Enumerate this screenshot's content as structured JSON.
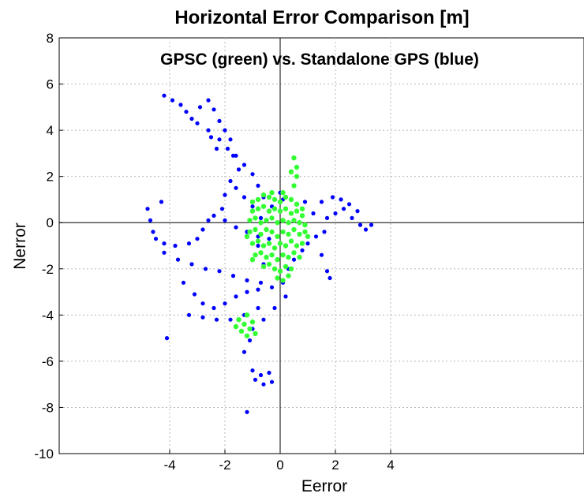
{
  "chart_data": {
    "type": "scatter",
    "title": "Horizontal Error Comparison [m]",
    "annotation": "GPSC (green) vs. Standalone GPS (blue)",
    "xlabel": "Eerror",
    "ylabel": "Nerror",
    "xlim": [
      -8,
      11
    ],
    "ylim": [
      -10,
      8
    ],
    "xticks": [
      -4,
      -2,
      0,
      2,
      4
    ],
    "yticks": [
      8,
      6,
      4,
      2,
      0,
      -2,
      -4,
      -6,
      -8,
      -10
    ],
    "grid": true,
    "series": [
      {
        "color": "#0000ff",
        "points": [
          [
            -4.2,
            5.5
          ],
          [
            -3.9,
            5.3
          ],
          [
            -3.6,
            5.1
          ],
          [
            -3.4,
            4.8
          ],
          [
            -3.2,
            4.5
          ],
          [
            -3.0,
            4.3
          ],
          [
            -2.6,
            4.0
          ],
          [
            -2.2,
            3.6
          ],
          [
            -1.9,
            3.2
          ],
          [
            -1.6,
            2.9
          ],
          [
            -1.3,
            2.5
          ],
          [
            -1.0,
            2.1
          ],
          [
            -0.8,
            1.6
          ],
          [
            -0.6,
            1.1
          ],
          [
            -2.6,
            5.3
          ],
          [
            -2.4,
            4.9
          ],
          [
            -2.2,
            4.4
          ],
          [
            -2.0,
            4.0
          ],
          [
            -1.8,
            3.6
          ],
          [
            -1.7,
            2.9
          ],
          [
            -1.5,
            2.3
          ],
          [
            -1.8,
            1.8
          ],
          [
            -2.0,
            1.2
          ],
          [
            -2.1,
            0.6
          ],
          [
            -1.6,
            1.5
          ],
          [
            -1.3,
            1.1
          ],
          [
            -1.0,
            0.7
          ],
          [
            -4.8,
            0.6
          ],
          [
            -4.7,
            0.1
          ],
          [
            -4.6,
            -0.4
          ],
          [
            -4.5,
            -0.7
          ],
          [
            -4.2,
            -0.9
          ],
          [
            -3.8,
            -1.0
          ],
          [
            -3.3,
            -0.9
          ],
          [
            -3.0,
            -0.7
          ],
          [
            -2.8,
            -0.3
          ],
          [
            -2.6,
            0.1
          ],
          [
            -2.4,
            0.3
          ],
          [
            -2.0,
            0.1
          ],
          [
            -1.6,
            -0.2
          ],
          [
            -1.2,
            -0.4
          ],
          [
            -0.8,
            -0.6
          ],
          [
            -0.4,
            -0.7
          ],
          [
            -4.2,
            -1.3
          ],
          [
            -3.7,
            -1.6
          ],
          [
            -3.2,
            -1.8
          ],
          [
            -2.7,
            -2.0
          ],
          [
            -2.2,
            -2.1
          ],
          [
            -1.7,
            -2.3
          ],
          [
            -1.2,
            -2.5
          ],
          [
            -0.7,
            -2.6
          ],
          [
            -0.3,
            -2.8
          ],
          [
            -3.5,
            -2.6
          ],
          [
            -3.1,
            -3.1
          ],
          [
            -2.8,
            -3.5
          ],
          [
            -2.4,
            -3.7
          ],
          [
            -2.0,
            -3.5
          ],
          [
            -1.6,
            -3.2
          ],
          [
            -1.2,
            -3.0
          ],
          [
            -0.8,
            -2.9
          ],
          [
            -3.3,
            -4.0
          ],
          [
            -2.8,
            -4.1
          ],
          [
            -2.3,
            -4.2
          ],
          [
            -1.8,
            -4.2
          ],
          [
            -1.3,
            -4.0
          ],
          [
            -0.8,
            -3.7
          ],
          [
            -1.0,
            -4.6
          ],
          [
            -1.1,
            -5.1
          ],
          [
            -1.3,
            -5.6
          ],
          [
            -0.6,
            -4.2
          ],
          [
            -0.2,
            -3.7
          ],
          [
            0.2,
            -3.2
          ],
          [
            -1.0,
            -6.4
          ],
          [
            -0.7,
            -6.6
          ],
          [
            -0.4,
            -6.5
          ],
          [
            -0.3,
            -6.9
          ],
          [
            -0.6,
            -7.0
          ],
          [
            -0.9,
            -6.8
          ],
          [
            0.1,
            -2.6
          ],
          [
            0.3,
            -2.0
          ],
          [
            0.5,
            -1.6
          ],
          [
            0.8,
            -1.2
          ],
          [
            1.0,
            -0.9
          ],
          [
            1.3,
            -0.6
          ],
          [
            1.6,
            -0.4
          ],
          [
            1.5,
            -1.4
          ],
          [
            1.7,
            -2.1
          ],
          [
            1.8,
            -2.4
          ],
          [
            1.7,
            0.2
          ],
          [
            2.0,
            0.4
          ],
          [
            2.3,
            0.6
          ],
          [
            2.6,
            0.2
          ],
          [
            2.9,
            -0.1
          ],
          [
            3.1,
            -0.3
          ],
          [
            3.3,
            -0.1
          ],
          [
            1.9,
            1.1
          ],
          [
            2.2,
            1.0
          ],
          [
            2.5,
            0.8
          ],
          [
            2.8,
            0.5
          ],
          [
            1.2,
            0.4
          ],
          [
            0.9,
            0.9
          ],
          [
            1.5,
            0.9
          ],
          [
            -0.7,
            0.2
          ],
          [
            -0.8,
            -1.0
          ],
          [
            -0.6,
            -1.8
          ],
          [
            -4.1,
            -5.0
          ],
          [
            -4.3,
            0.9
          ],
          [
            -1.2,
            -8.2
          ],
          [
            0.0,
            1.3
          ],
          [
            0.1,
            1.0
          ],
          [
            -0.3,
            0.7
          ],
          [
            -2.9,
            5.0
          ],
          [
            -2.5,
            3.7
          ],
          [
            -2.3,
            3.2
          ]
        ]
      },
      {
        "color": "#33ff33",
        "points": [
          [
            -1.0,
            0.9
          ],
          [
            -0.8,
            1.0
          ],
          [
            -0.6,
            1.2
          ],
          [
            -0.4,
            1.1
          ],
          [
            -0.2,
            1.0
          ],
          [
            0.0,
            0.9
          ],
          [
            0.2,
            1.1
          ],
          [
            0.4,
            1.0
          ],
          [
            0.6,
            0.8
          ],
          [
            0.8,
            0.6
          ],
          [
            -1.0,
            0.5
          ],
          [
            -0.8,
            0.6
          ],
          [
            -0.6,
            0.7
          ],
          [
            -0.4,
            0.5
          ],
          [
            -0.2,
            0.6
          ],
          [
            0.0,
            0.5
          ],
          [
            0.2,
            0.6
          ],
          [
            0.4,
            0.4
          ],
          [
            0.6,
            0.5
          ],
          [
            0.8,
            0.3
          ],
          [
            -1.1,
            0.1
          ],
          [
            -0.9,
            0.2
          ],
          [
            -0.7,
            0.0
          ],
          [
            -0.5,
            0.1
          ],
          [
            -0.3,
            0.2
          ],
          [
            -0.1,
            0.0
          ],
          [
            0.1,
            0.1
          ],
          [
            0.3,
            0.0
          ],
          [
            0.5,
            0.1
          ],
          [
            0.7,
            0.0
          ],
          [
            0.9,
            -0.1
          ],
          [
            -1.1,
            -0.4
          ],
          [
            -0.9,
            -0.3
          ],
          [
            -0.7,
            -0.5
          ],
          [
            -0.5,
            -0.3
          ],
          [
            -0.3,
            -0.4
          ],
          [
            -0.1,
            -0.6
          ],
          [
            0.1,
            -0.4
          ],
          [
            0.3,
            -0.5
          ],
          [
            0.5,
            -0.3
          ],
          [
            0.7,
            -0.5
          ],
          [
            0.9,
            -0.4
          ],
          [
            -1.0,
            -0.9
          ],
          [
            -0.8,
            -0.8
          ],
          [
            -0.6,
            -1.0
          ],
          [
            -0.4,
            -0.9
          ],
          [
            -0.2,
            -1.1
          ],
          [
            0.0,
            -0.9
          ],
          [
            0.2,
            -1.0
          ],
          [
            0.4,
            -0.8
          ],
          [
            0.6,
            -1.0
          ],
          [
            0.8,
            -0.9
          ],
          [
            -0.9,
            -1.4
          ],
          [
            -0.7,
            -1.3
          ],
          [
            -0.5,
            -1.5
          ],
          [
            -0.3,
            -1.4
          ],
          [
            -0.1,
            -1.6
          ],
          [
            0.1,
            -1.4
          ],
          [
            0.3,
            -1.5
          ],
          [
            0.5,
            -1.3
          ],
          [
            0.7,
            -1.5
          ],
          [
            -0.6,
            -1.9
          ],
          [
            -0.4,
            -1.8
          ],
          [
            -0.2,
            -2.0
          ],
          [
            0.0,
            -2.1
          ],
          [
            0.2,
            -1.9
          ],
          [
            0.4,
            -2.0
          ],
          [
            -0.1,
            -2.4
          ],
          [
            0.1,
            -2.5
          ],
          [
            0.3,
            -2.3
          ],
          [
            0.5,
            2.8
          ],
          [
            0.6,
            2.4
          ],
          [
            0.6,
            2.0
          ],
          [
            0.5,
            1.6
          ],
          [
            0.4,
            2.2
          ],
          [
            -1.5,
            -4.2
          ],
          [
            -1.3,
            -4.4
          ],
          [
            -1.1,
            -4.6
          ],
          [
            -1.2,
            -4.0
          ],
          [
            -1.0,
            -4.3
          ],
          [
            -1.4,
            -4.7
          ],
          [
            -1.2,
            -4.9
          ],
          [
            -0.9,
            -4.8
          ],
          [
            -1.6,
            -4.5
          ],
          [
            -1.2,
            -0.6
          ],
          [
            -1.0,
            -1.6
          ],
          [
            1.0,
            -0.6
          ],
          [
            -0.3,
            1.3
          ],
          [
            0.1,
            1.3
          ]
        ]
      }
    ]
  }
}
